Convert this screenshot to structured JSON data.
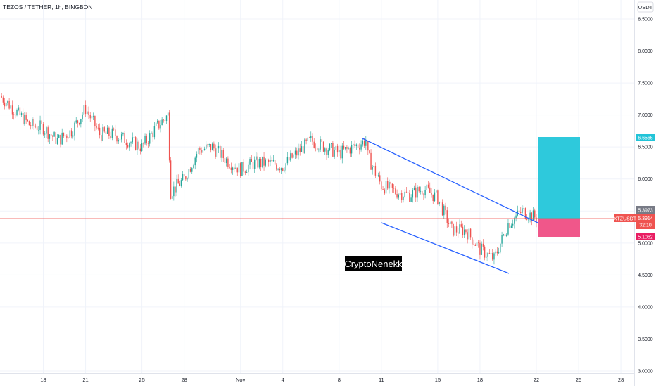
{
  "header": {
    "symbol_title": "TEZOS / TETHER, 1h, BINGBON"
  },
  "price_axis": {
    "currency": "USDT",
    "ticks": [
      "8.5000",
      "8.0000",
      "7.5000",
      "7.0000",
      "6.5000",
      "6.0000",
      "5.5000",
      "5.0000",
      "4.5000",
      "4.0000",
      "3.5000",
      "3.0000"
    ]
  },
  "time_axis": {
    "ticks": [
      "18",
      "21",
      "25",
      "28",
      "Nov",
      "4",
      "8",
      "11",
      "15",
      "18",
      "22",
      "25",
      "28"
    ]
  },
  "badges": {
    "target_price": "6.6565",
    "reference_price": "5.3973",
    "last_symbol": "XTZUSDT",
    "last_price": "5.3914",
    "countdown": "32:10",
    "stop_price": "5.1062"
  },
  "watermark": "CryptoNenekk",
  "colors": {
    "up": "#26a69a",
    "down": "#ef5350",
    "trendline": "#2962ff",
    "profit_zone": "#2ec9dc",
    "loss_zone": "#f0578a",
    "last_price_line": "#ef5350",
    "grid": "#f0f3fa"
  },
  "chart_data": {
    "type": "candlestick",
    "timeframe": "1h",
    "yscale": "linear",
    "ylim": [
      2.95,
      8.7
    ],
    "xlim": [
      "Oct 16",
      "Nov 30"
    ],
    "grid": true,
    "series": [
      {
        "x": [
          "Oct 16",
          "Oct 17",
          "Oct 18",
          "Oct 19",
          "Oct 20",
          "Oct 21",
          "Oct 22",
          "Oct 23",
          "Oct 24",
          "Oct 25",
          "Oct 26",
          "Oct 27",
          "Oct 27",
          "Oct 28",
          "Oct 29",
          "Oct 30",
          "Oct 31",
          "Nov 1",
          "Nov 2",
          "Nov 3",
          "Nov 4",
          "Nov 5",
          "Nov 6",
          "Nov 7",
          "Nov 8",
          "Nov 9",
          "Nov 10",
          "Nov 10",
          "Nov 11",
          "Nov 12",
          "Nov 13",
          "Nov 14",
          "Nov 15",
          "Nov 16",
          "Nov 17",
          "Nov 18",
          "Nov 19",
          "Nov 20",
          "Nov 21",
          "Nov 22"
        ],
        "close": [
          7.3,
          6.85,
          6.8,
          6.6,
          6.75,
          7.1,
          6.7,
          6.7,
          6.6,
          6.5,
          6.8,
          7.0,
          5.8,
          6.0,
          6.45,
          6.5,
          6.3,
          6.15,
          6.25,
          6.25,
          6.2,
          6.4,
          6.6,
          6.5,
          6.4,
          6.5,
          6.6,
          6.35,
          5.9,
          5.8,
          5.75,
          5.85,
          5.7,
          5.2,
          5.2,
          4.9,
          4.75,
          5.3,
          5.5,
          5.39
        ]
      }
    ],
    "drawings": {
      "trendline_upper": {
        "from": [
          "Nov 9",
          6.63
        ],
        "to": [
          "Nov 22",
          5.32
        ]
      },
      "trendline_lower": {
        "from": [
          "Nov 11",
          5.33
        ],
        "to": [
          "Nov 20",
          4.52
        ]
      },
      "long_position": {
        "entry": 5.39,
        "target": 6.6565,
        "stop": 5.1062,
        "from": "Nov 22",
        "to": "Nov 25"
      }
    }
  }
}
